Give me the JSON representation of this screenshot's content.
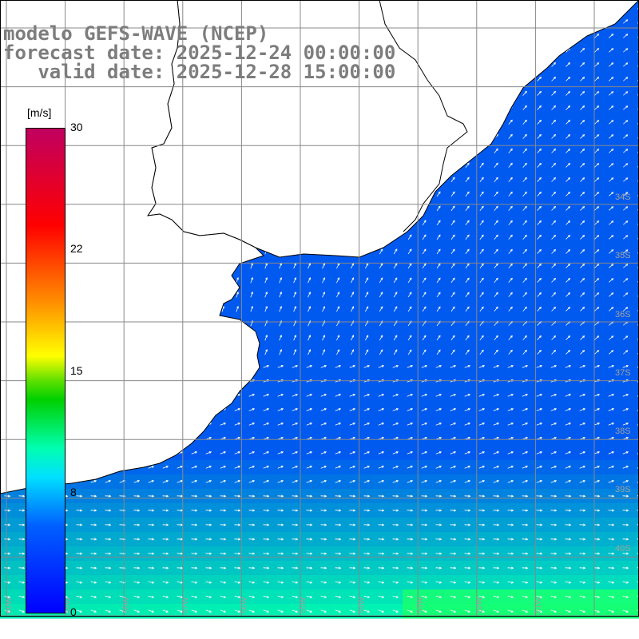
{
  "titles": {
    "line1": "modelo GEFS-WAVE (NCEP)",
    "line2": "forecast date: 2025-12-24 00:00:00",
    "line3": "   valid date: 2025-12-28 15:00:00"
  },
  "colorbar": {
    "units": "[m/s]",
    "ticks": [
      "30",
      "22",
      "15",
      "8",
      "0"
    ],
    "tick_values": [
      30,
      22,
      15,
      8,
      0
    ],
    "colors": [
      "#0000ff",
      "#0060ff",
      "#00e0ff",
      "#00ffb0",
      "#00d000",
      "#ffff00",
      "#ff9000",
      "#ff0000",
      "#c00060"
    ]
  },
  "map": {
    "lat_labels": [
      "34S",
      "35S",
      "36S",
      "37S",
      "38S",
      "39S",
      "40S"
    ],
    "lon_labels": [
      "60W",
      "59W",
      "58W",
      "57W",
      "56W",
      "55W",
      "54W",
      "53W",
      "52W",
      "51W"
    ],
    "land_color": "#ffffff",
    "grid_color": "#888888"
  }
}
